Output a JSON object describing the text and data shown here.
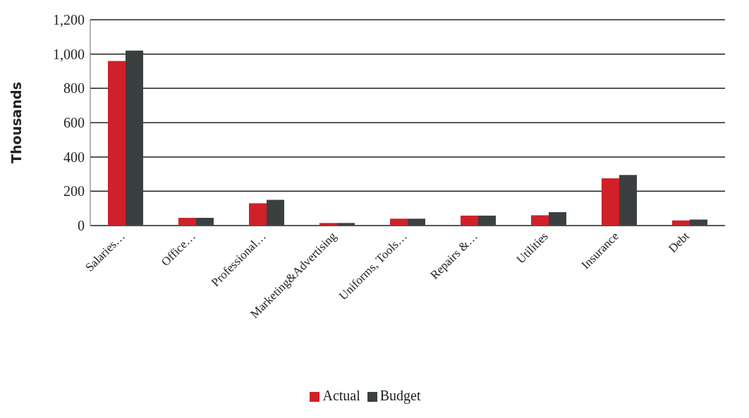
{
  "chart_data": {
    "type": "bar",
    "ylabel": "Thousands",
    "categories": [
      "Salaries…",
      "Office…",
      "Professional…",
      "Marketing&Advertising",
      "Uniforms, Tools…",
      "Repairs &…",
      "Utilities",
      "Insurance",
      "Debt"
    ],
    "series": [
      {
        "name": "Actual",
        "color": "#d0202a",
        "values": [
          960,
          45,
          130,
          15,
          40,
          58,
          60,
          275,
          30
        ]
      },
      {
        "name": "Budget",
        "color": "#3a3f3f",
        "values": [
          1020,
          45,
          150,
          15,
          40,
          58,
          78,
          295,
          35
        ]
      }
    ],
    "ylim": [
      0,
      1200
    ],
    "yticks": [
      0,
      {
        "value": 200,
        "label": "200"
      },
      {
        "value": 400,
        "label": "400"
      },
      {
        "value": 600,
        "label": "600"
      },
      {
        "value": 800,
        "label": "800"
      },
      {
        "value": 1000,
        "label": "1,000"
      },
      {
        "value": 1200,
        "label": "1,200"
      }
    ],
    "grid": "y",
    "legend": "bottom"
  }
}
